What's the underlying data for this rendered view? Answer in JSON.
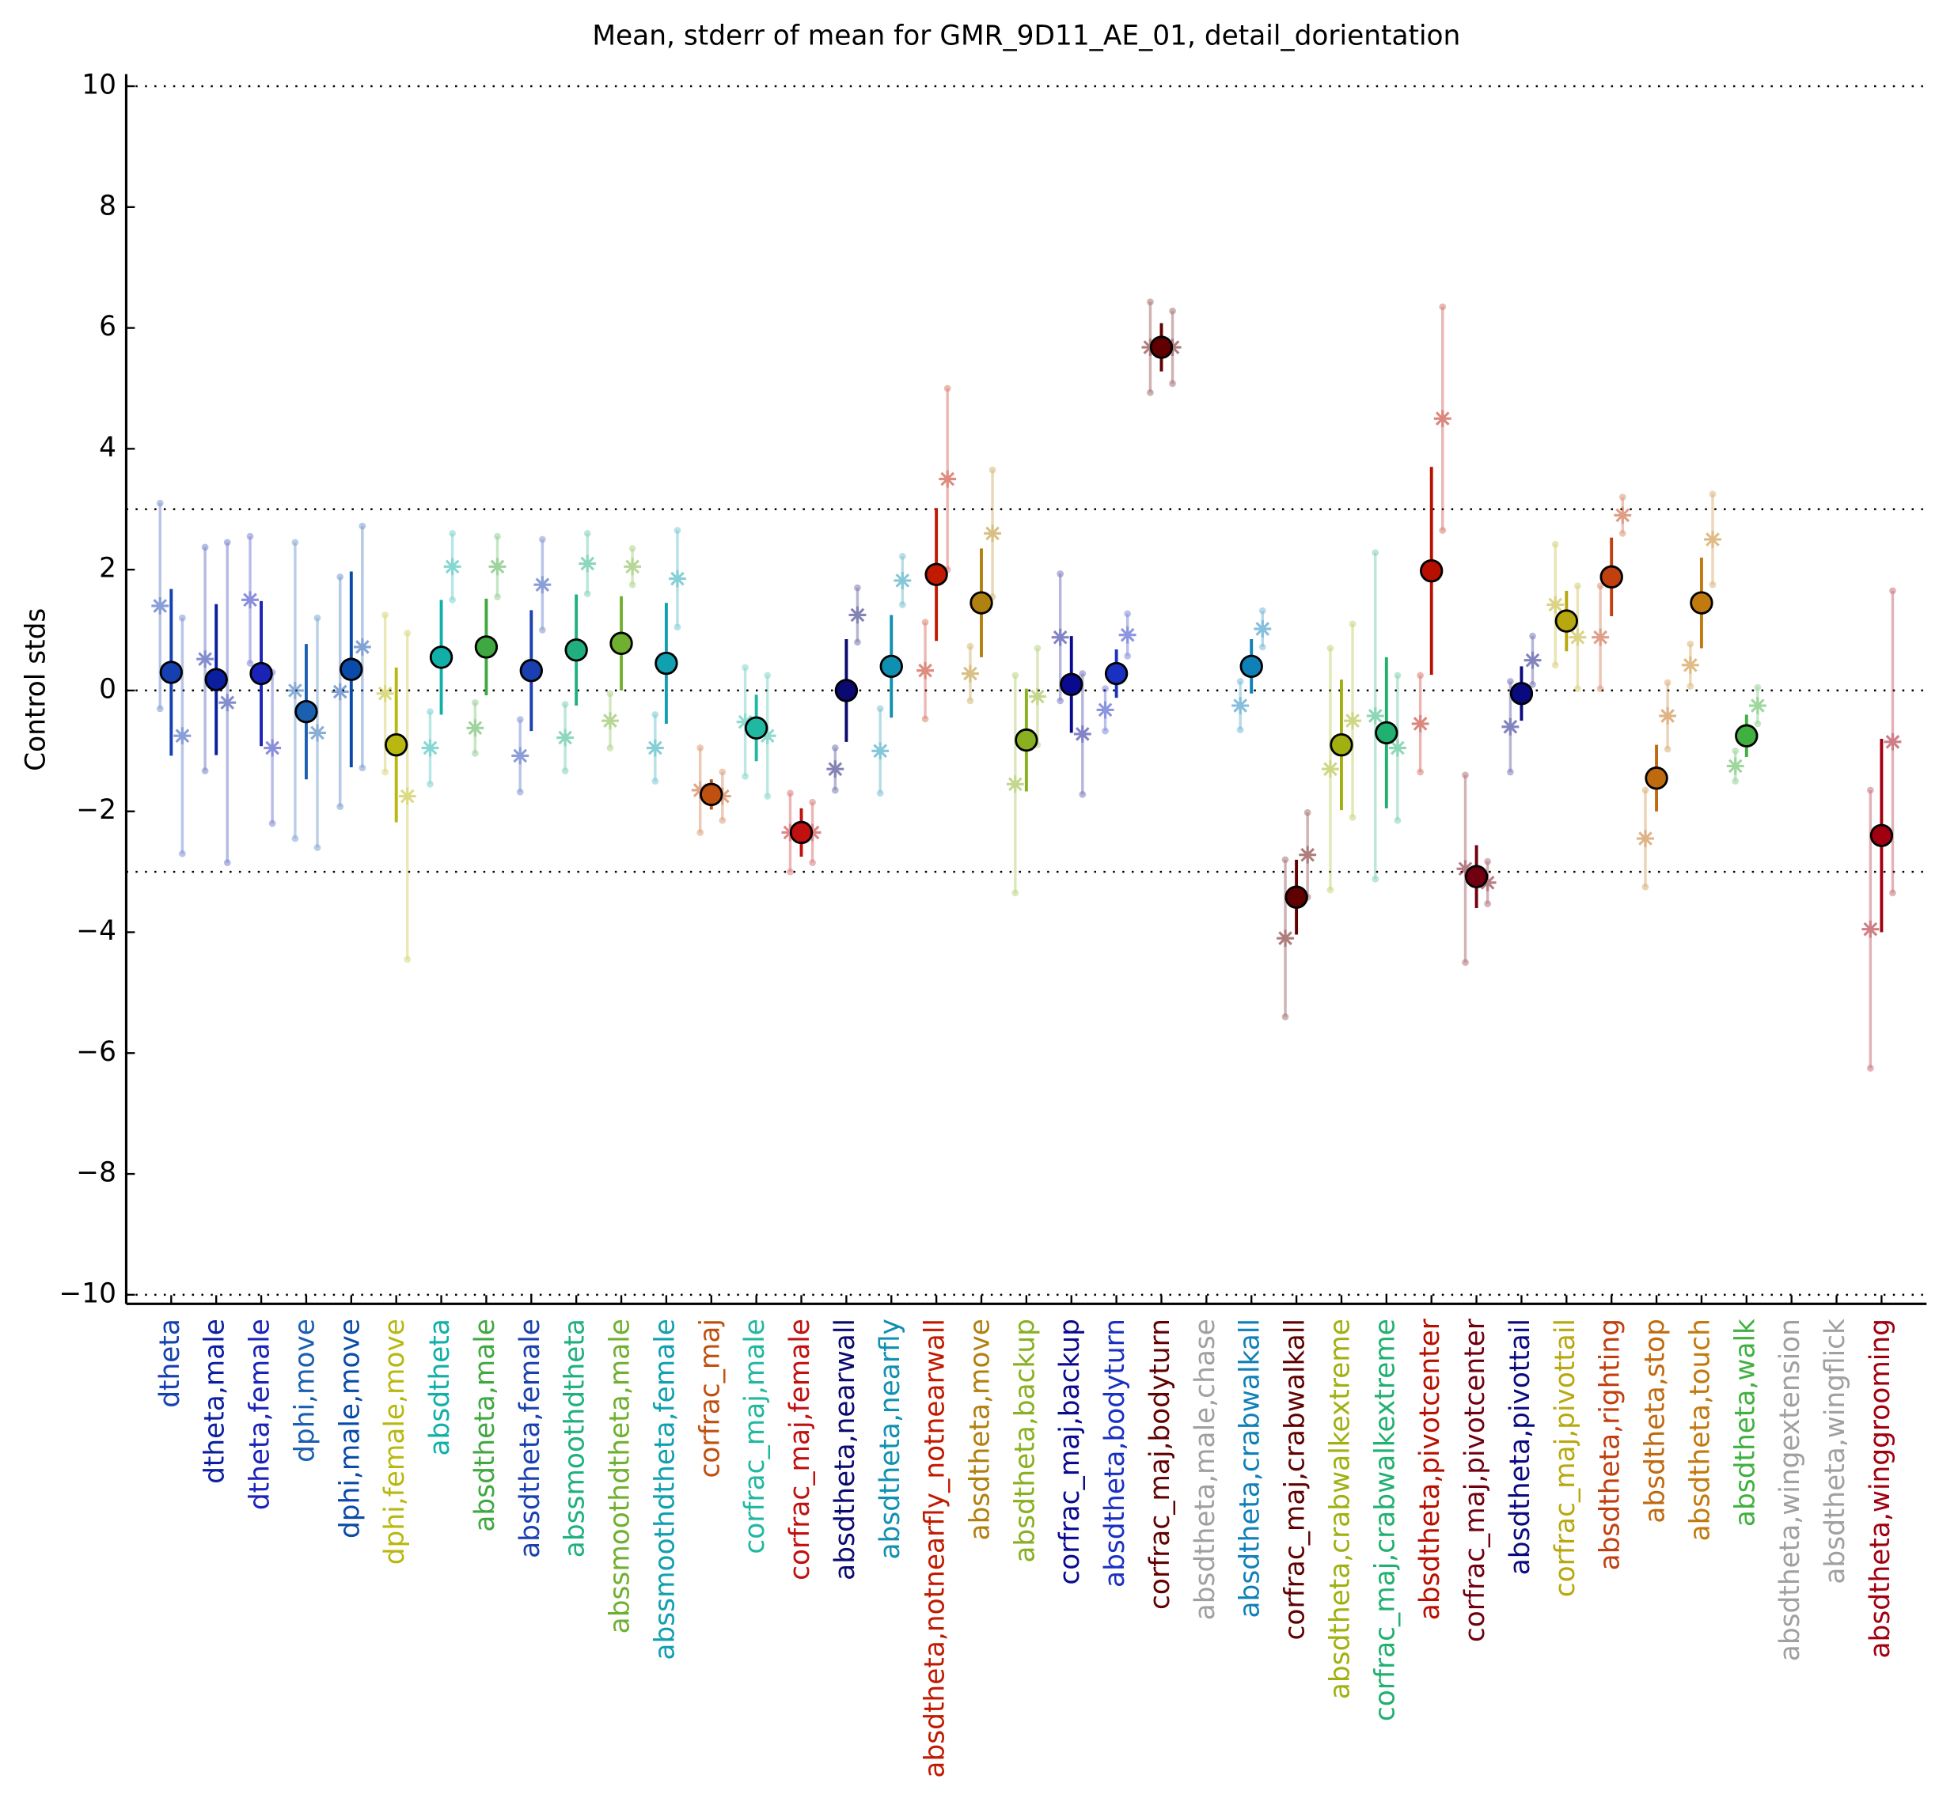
{
  "chart_data": {
    "type": "errorbar",
    "title": "Mean, stderr of mean for GMR_9D11_AE_01, detail_dorientation",
    "ylabel": "Control stds",
    "ylim": [
      -10.15,
      10.2
    ],
    "yticks": [
      {
        "value": -10,
        "label": "−10"
      },
      {
        "value": -8,
        "label": "−8"
      },
      {
        "value": -6,
        "label": "−6"
      },
      {
        "value": -4,
        "label": "−4"
      },
      {
        "value": -2,
        "label": "−2"
      },
      0,
      2,
      4,
      6,
      8,
      10
    ],
    "hlines": [
      10,
      3,
      0,
      -3,
      -10
    ],
    "categories": [
      "dtheta",
      "dtheta,male",
      "dtheta,female",
      "dphi,move",
      "dphi,male,move",
      "dphi,female,move",
      "absdtheta",
      "absdtheta,male",
      "absdtheta,female",
      "abssmoothdtheta",
      "abssmoothdtheta,male",
      "abssmoothdtheta,female",
      "corfrac_maj",
      "corfrac_maj,male",
      "corfrac_maj,female",
      "absdtheta,nearwall",
      "absdtheta,nearfly",
      "absdtheta,notnearfly_notnearwall",
      "absdtheta,move",
      "absdtheta,backup",
      "corfrac_maj,backup",
      "absdtheta,bodyturn",
      "corfrac_maj,bodyturn",
      "absdtheta,male,chase",
      "absdtheta,crabwalkall",
      "corfrac_maj,crabwalkall",
      "absdtheta,crabwalkextreme",
      "corfrac_maj,crabwalkextreme",
      "absdtheta,pivotcenter",
      "corfrac_maj,pivotcenter",
      "absdtheta,pivottail",
      "corfrac_maj,pivottail",
      "absdtheta,righting",
      "absdtheta,stop",
      "absdtheta,touch",
      "absdtheta,walk",
      "absdtheta,wingextension",
      "absdtheta,wingflick",
      "absdtheta,winggrooming"
    ],
    "colors": [
      "#1440b0",
      "#0a1fa0",
      "#1a22b8",
      "#1a5fb0",
      "#0a4aa8",
      "#b8b810",
      "#10b0a8",
      "#40a840",
      "#1a40b0",
      "#20b080",
      "#70b030",
      "#10a0b0",
      "#c05010",
      "#20b8a0",
      "#c01010",
      "#0a0a70",
      "#1090b0",
      "#c01a00",
      "#b08010",
      "#88b020",
      "#0a0a90",
      "#1a30c0",
      "#600000",
      "#a0a0a0",
      "#1080b8",
      "#600000",
      "#a0b010",
      "#20b070",
      "#b81000",
      "#700010",
      "#0a0a80",
      "#b8a810",
      "#c04010",
      "#c06a10",
      "#c07a10",
      "#40b040",
      "#a0a0a0",
      "#a0a0a0",
      "#a00010"
    ],
    "values": [
      0.3,
      0.18,
      0.28,
      -0.35,
      0.35,
      -0.9,
      0.55,
      0.72,
      0.33,
      0.67,
      0.78,
      0.45,
      -1.72,
      -0.62,
      -2.35,
      0.0,
      0.4,
      1.92,
      1.45,
      -0.82,
      0.1,
      0.28,
      5.68,
      null,
      0.4,
      -3.42,
      -0.9,
      -0.7,
      1.98,
      -3.08,
      -0.05,
      1.15,
      1.88,
      -1.45,
      1.45,
      -0.75,
      null,
      null,
      -2.4
    ],
    "errors": [
      1.38,
      1.25,
      1.2,
      1.12,
      1.62,
      1.28,
      0.95,
      0.8,
      1.0,
      0.92,
      0.78,
      1.0,
      0.25,
      0.55,
      0.4,
      0.85,
      0.85,
      1.1,
      0.9,
      0.85,
      0.8,
      0.4,
      0.4,
      null,
      0.45,
      0.62,
      1.08,
      1.25,
      1.72,
      0.52,
      0.45,
      0.5,
      0.65,
      0.55,
      0.75,
      0.35,
      null,
      null,
      1.6
    ],
    "male_values": [
      1.4,
      0.52,
      1.5,
      0.0,
      -0.02,
      -0.05,
      -0.95,
      -0.62,
      -1.08,
      -0.78,
      -0.5,
      -0.95,
      -1.65,
      -0.52,
      -2.35,
      -1.3,
      -1.0,
      0.33,
      0.28,
      -1.55,
      0.88,
      -0.32,
      5.68,
      null,
      -0.25,
      -4.1,
      -1.3,
      -0.42,
      -0.55,
      -2.95,
      -0.6,
      1.42,
      0.88,
      -2.45,
      0.42,
      -1.25,
      null,
      null,
      -3.95
    ],
    "male_errors": [
      1.7,
      1.85,
      1.05,
      2.45,
      1.9,
      1.3,
      0.6,
      0.42,
      0.6,
      0.55,
      0.45,
      0.55,
      0.7,
      0.9,
      0.65,
      0.35,
      0.7,
      0.8,
      0.45,
      1.8,
      1.05,
      0.35,
      0.75,
      null,
      0.4,
      1.3,
      2.0,
      2.7,
      0.8,
      1.55,
      0.75,
      1.0,
      0.85,
      0.8,
      0.35,
      0.25,
      null,
      null,
      2.3
    ],
    "female_values": [
      -0.75,
      -0.2,
      -0.95,
      -0.7,
      0.72,
      -1.75,
      2.05,
      2.05,
      1.75,
      2.1,
      2.05,
      1.85,
      -1.75,
      -0.75,
      -2.35,
      1.25,
      1.82,
      3.5,
      2.6,
      -0.1,
      -0.72,
      0.92,
      5.68,
      null,
      1.02,
      -2.72,
      -0.5,
      -0.95,
      4.5,
      -3.18,
      0.5,
      0.88,
      2.9,
      -0.42,
      2.5,
      -0.25,
      null,
      null,
      -0.85
    ],
    "female_errors": [
      1.95,
      2.65,
      1.25,
      1.9,
      2.0,
      2.7,
      0.55,
      0.5,
      0.75,
      0.5,
      0.3,
      0.8,
      0.4,
      1.0,
      0.5,
      0.45,
      0.4,
      1.5,
      1.05,
      0.8,
      1.0,
      0.35,
      0.6,
      null,
      0.3,
      0.7,
      1.6,
      1.2,
      1.85,
      0.35,
      0.4,
      0.85,
      0.3,
      0.55,
      0.75,
      0.3,
      null,
      null,
      2.5
    ]
  }
}
